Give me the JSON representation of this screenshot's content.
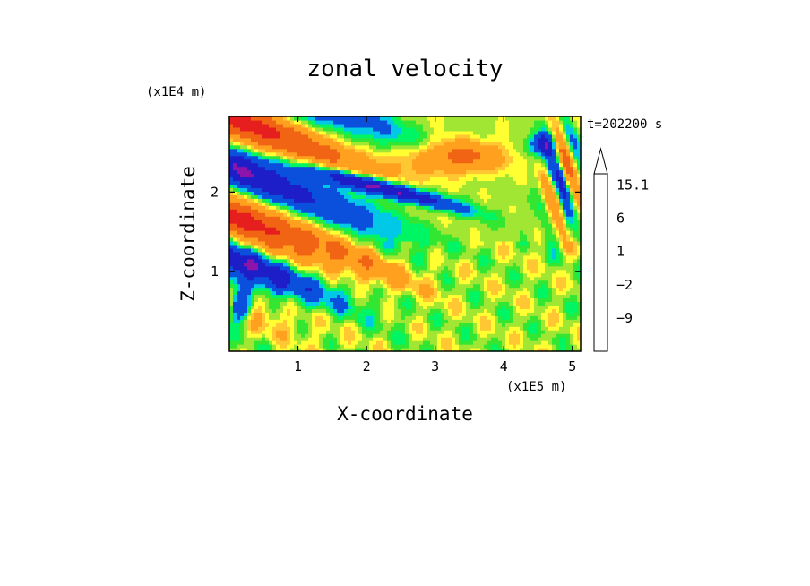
{
  "chart_data": {
    "type": "heatmap",
    "title": "zonal velocity",
    "xlabel": "X-coordinate",
    "ylabel": "Z-coordinate",
    "x_unit": "(x1E5 m)",
    "y_unit": "(x1E4 m)",
    "time_label": "t=202200 s",
    "xlim": [
      0.0,
      5.12
    ],
    "ylim": [
      0.0,
      2.95
    ],
    "x_ticks": [
      1,
      2,
      3,
      4,
      5
    ],
    "y_ticks": [
      1,
      2
    ],
    "colorbar": {
      "levels": [
        -15,
        -12,
        -9,
        -6,
        -3,
        -2,
        -1,
        0,
        1,
        2,
        3,
        6,
        9,
        12,
        15.1
      ],
      "colors": [
        "#e600b4",
        "#b414aa",
        "#8c14aa",
        "#1e1ec8",
        "#0a50dc",
        "#00c8e6",
        "#00f564",
        "#32e632",
        "#a0e632",
        "#ffff32",
        "#ffc832",
        "#ffa01e",
        "#f06414",
        "#e61e1e",
        "#f0a0a0",
        "#ffc8c8"
      ],
      "labels": [
        {
          "value": 15.1,
          "text": "15.1"
        },
        {
          "value": 6,
          "text": "6"
        },
        {
          "value": 1,
          "text": "1"
        },
        {
          "value": -2,
          "text": "−2"
        },
        {
          "value": -9,
          "text": "−9"
        }
      ]
    }
  }
}
